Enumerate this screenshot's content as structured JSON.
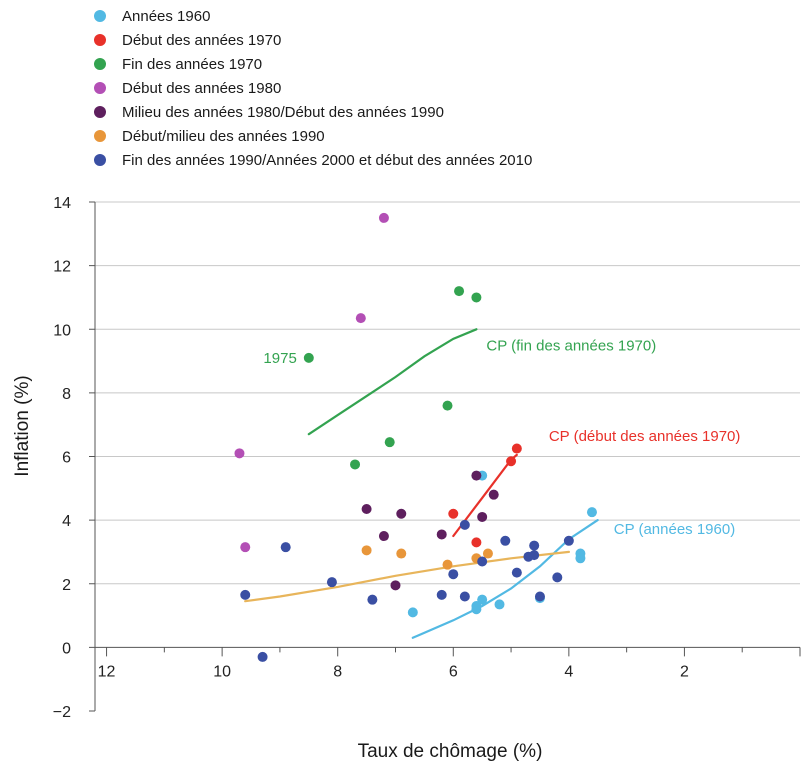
{
  "chart_data": {
    "type": "scatter",
    "xlabel": "Taux de chômage (%)",
    "ylabel": "Inflation (%)",
    "xlim": [
      12.2,
      0
    ],
    "ylim": [
      -2,
      14
    ],
    "x_reversed": true,
    "x_ticks": [
      12,
      10,
      8,
      6,
      4,
      2
    ],
    "y_ticks": [
      14,
      12,
      10,
      8,
      6,
      4,
      2,
      0,
      -2
    ],
    "grid": "horizontal",
    "legend_position": "top-left",
    "series": [
      {
        "name": "Années 1960",
        "color": "#52b9e3",
        "points": [
          [
            5.5,
            5.4
          ],
          [
            3.6,
            4.25
          ],
          [
            3.8,
            2.95
          ],
          [
            3.8,
            2.8
          ],
          [
            4.5,
            1.55
          ],
          [
            5.2,
            1.35
          ],
          [
            5.5,
            1.5
          ],
          [
            5.6,
            1.2
          ],
          [
            5.6,
            1.3
          ],
          [
            6.7,
            1.1
          ]
        ]
      },
      {
        "name": "Début des années 1970",
        "color": "#e8312a",
        "points": [
          [
            4.9,
            6.25
          ],
          [
            5.0,
            5.85
          ],
          [
            6.0,
            4.2
          ],
          [
            5.6,
            3.3
          ]
        ]
      },
      {
        "name": "Fin des années 1970",
        "color": "#33a350",
        "points": [
          [
            8.5,
            9.1
          ],
          [
            5.9,
            11.2
          ],
          [
            5.6,
            11.0
          ],
          [
            6.1,
            7.6
          ],
          [
            7.1,
            6.45
          ],
          [
            7.7,
            5.75
          ]
        ]
      },
      {
        "name": "Début des années 1980",
        "color": "#b34fb5",
        "points": [
          [
            7.2,
            13.5
          ],
          [
            7.6,
            10.35
          ],
          [
            9.7,
            6.1
          ],
          [
            9.6,
            3.15
          ]
        ]
      },
      {
        "name": "Milieu des années 1980/Début des années 1990",
        "color": "#5e1f5e",
        "points": [
          [
            5.6,
            5.4
          ],
          [
            5.3,
            4.8
          ],
          [
            7.5,
            4.35
          ],
          [
            6.9,
            4.2
          ],
          [
            5.5,
            4.1
          ],
          [
            6.2,
            3.55
          ],
          [
            7.2,
            3.5
          ],
          [
            7.0,
            1.95
          ]
        ]
      },
      {
        "name": "Début/milieu des années 1990",
        "color": "#e8963a",
        "points": [
          [
            7.5,
            3.05
          ],
          [
            6.9,
            2.95
          ],
          [
            5.4,
            2.95
          ],
          [
            5.6,
            2.8
          ],
          [
            6.1,
            2.6
          ]
        ]
      },
      {
        "name": "Fin des années 1990/Années 2000 et début des années 2010",
        "color": "#3a4fa3",
        "points": [
          [
            8.9,
            3.15
          ],
          [
            5.8,
            3.85
          ],
          [
            4.0,
            3.35
          ],
          [
            5.1,
            3.35
          ],
          [
            4.6,
            3.2
          ],
          [
            4.7,
            2.85
          ],
          [
            4.6,
            2.9
          ],
          [
            5.5,
            2.7
          ],
          [
            6.0,
            2.3
          ],
          [
            4.9,
            2.35
          ],
          [
            4.2,
            2.2
          ],
          [
            8.1,
            2.05
          ],
          [
            9.6,
            1.65
          ],
          [
            7.4,
            1.5
          ],
          [
            6.2,
            1.65
          ],
          [
            5.8,
            1.6
          ],
          [
            4.5,
            1.6
          ],
          [
            9.3,
            -0.3
          ]
        ]
      }
    ],
    "curves": [
      {
        "label": "CP (fin des années 1970)",
        "color": "#33a350",
        "points": [
          [
            8.5,
            6.7
          ],
          [
            8.0,
            7.3
          ],
          [
            7.5,
            7.9
          ],
          [
            7.0,
            8.5
          ],
          [
            6.5,
            9.15
          ],
          [
            6.0,
            9.7
          ],
          [
            5.6,
            10.0
          ]
        ]
      },
      {
        "label": "CP (début des années 1970)",
        "color": "#e8312a",
        "points": [
          [
            6.0,
            3.5
          ],
          [
            5.5,
            4.7
          ],
          [
            5.0,
            5.9
          ],
          [
            4.9,
            6.05
          ]
        ]
      },
      {
        "label": "CP (années 1960)",
        "color": "#52b9e3",
        "points": [
          [
            6.7,
            0.3
          ],
          [
            6.0,
            0.85
          ],
          [
            5.5,
            1.3
          ],
          [
            5.0,
            1.85
          ],
          [
            4.5,
            2.55
          ],
          [
            4.0,
            3.4
          ],
          [
            3.5,
            4.0
          ]
        ]
      },
      {
        "label": "",
        "color": "#e8b55b",
        "points": [
          [
            9.6,
            1.45
          ],
          [
            9.0,
            1.6
          ],
          [
            8.0,
            1.9
          ],
          [
            7.0,
            2.25
          ],
          [
            6.0,
            2.55
          ],
          [
            5.0,
            2.8
          ],
          [
            4.0,
            3.0
          ]
        ]
      }
    ],
    "annotations": [
      {
        "text": "1975",
        "x": 8.5,
        "y": 9.1,
        "color": "#33a350"
      }
    ]
  }
}
